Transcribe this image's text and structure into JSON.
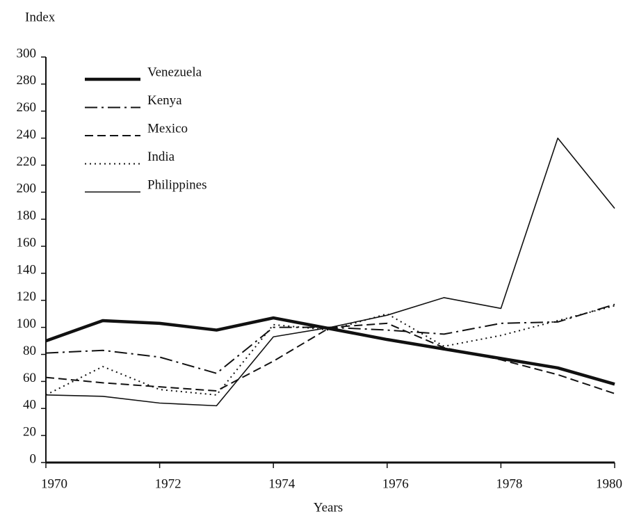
{
  "chart_data": {
    "type": "line",
    "y_label": "Index",
    "x_label": "Years",
    "x": [
      1970,
      1971,
      1972,
      1973,
      1974,
      1975,
      1976,
      1977,
      1978,
      1979,
      1980
    ],
    "xlim": [
      1970,
      1980
    ],
    "xticks": [
      1970,
      1972,
      1974,
      1976,
      1978,
      1980
    ],
    "ylim": [
      0,
      300
    ],
    "yticks": [
      0,
      20,
      40,
      60,
      80,
      100,
      120,
      140,
      160,
      180,
      200,
      220,
      240,
      260,
      280,
      300
    ],
    "series": [
      {
        "name": "Venezuela",
        "color": "#111111",
        "line_style": "thick",
        "values": [
          90,
          105,
          103,
          98,
          107,
          99,
          91,
          84,
          77,
          70,
          58
        ]
      },
      {
        "name": "Kenya",
        "color": "#111111",
        "line_style": "dashdot",
        "values": [
          81,
          83,
          78,
          66,
          100,
          100,
          98,
          95,
          103,
          104,
          117
        ]
      },
      {
        "name": "Mexico",
        "color": "#111111",
        "line_style": "dashed",
        "values": [
          63,
          59,
          56,
          53,
          75,
          100,
          103,
          85,
          76,
          65,
          51
        ]
      },
      {
        "name": "India",
        "color": "#111111",
        "line_style": "dotted",
        "values": [
          50,
          71,
          54,
          50,
          102,
          98,
          110,
          86,
          94,
          105,
          116
        ]
      },
      {
        "name": "Philippines",
        "color": "#111111",
        "line_style": "solid",
        "values": [
          50,
          49,
          44,
          42,
          93,
          100,
          109,
          122,
          114,
          240,
          188
        ]
      }
    ]
  }
}
